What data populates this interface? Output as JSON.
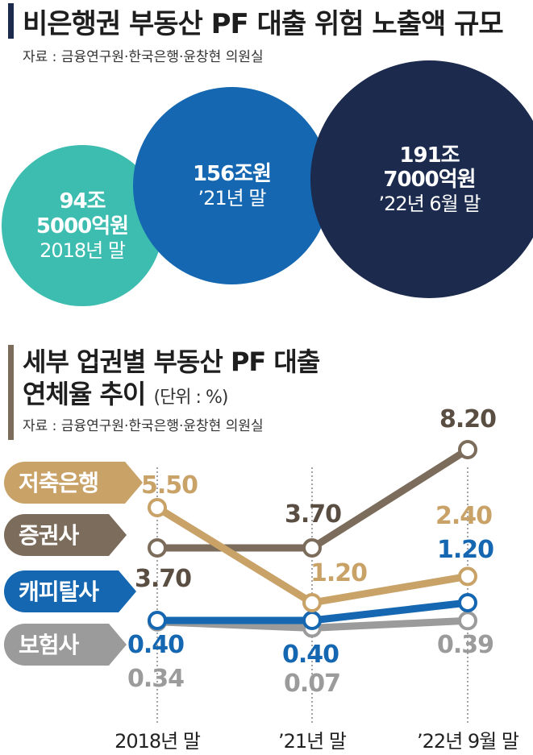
{
  "section1": {
    "title": "비은행권 부동산 PF 대출 위험 노출액 규모",
    "source": "자료 : 금융연구원·한국은행·윤창현 의원실",
    "bubbles": [
      {
        "amount_line1": "94조",
        "amount_line2": "5000억원",
        "period": "2018년 말",
        "color": "#3dbcb0"
      },
      {
        "amount_line1": "156조원",
        "amount_line2": "",
        "period": "’21년 말",
        "color": "#1467b0"
      },
      {
        "amount_line1": "191조",
        "amount_line2": "7000억원",
        "period": "’22년 6월 말",
        "color": "#1b2a4d"
      }
    ]
  },
  "section2": {
    "title_line1": "세부 업권별 부동산 PF 대출",
    "title_line2": "연체율 추이",
    "unit": "(단위 : %)",
    "source": "자료 : 금융연구원·한국은행·윤창현 의원실"
  },
  "chart_data": {
    "type": "line",
    "categories": [
      "2018년 말",
      "’21년 말",
      "’22년 9월 말"
    ],
    "series": [
      {
        "name": "저축은행",
        "values": [
          5.5,
          1.2,
          2.4
        ],
        "labels": [
          "5.50",
          "1.20",
          "2.40"
        ],
        "color": "#c9a268"
      },
      {
        "name": "증권사",
        "values": [
          3.7,
          3.7,
          8.2
        ],
        "labels": [
          "3.70",
          "3.70",
          "8.20"
        ],
        "color": "#7b6c5b"
      },
      {
        "name": "캐피탈사",
        "values": [
          0.4,
          0.4,
          1.2
        ],
        "labels": [
          "0.40",
          "0.40",
          "1.20"
        ],
        "color": "#1467b0"
      },
      {
        "name": "보험사",
        "values": [
          0.34,
          0.07,
          0.39
        ],
        "labels": [
          "0.34",
          "0.07",
          "0.39"
        ],
        "color": "#9b9b9b"
      }
    ]
  }
}
